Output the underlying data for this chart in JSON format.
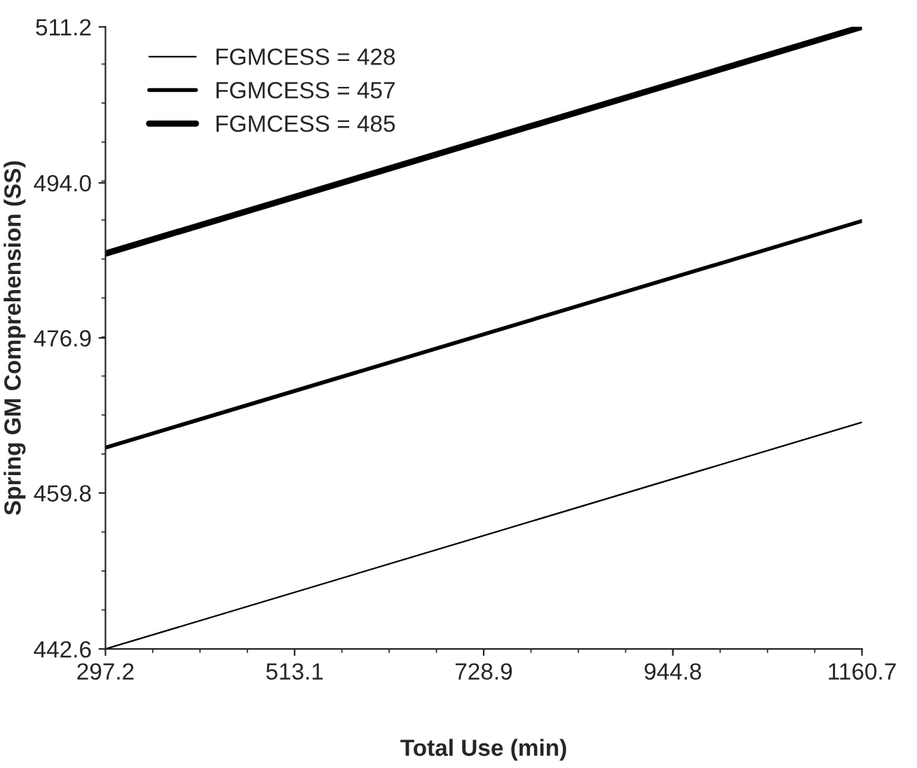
{
  "chart_data": {
    "type": "line",
    "xlabel": "Total Use (min)",
    "ylabel": "Spring GM Comprehension (SS)",
    "x": [
      297.2,
      1160.7
    ],
    "series": [
      {
        "name": "FGMCESS = 428",
        "color": "#000000",
        "values": [
          442.6,
          467.6
        ]
      },
      {
        "name": "FGMCESS = 457",
        "color": "#000000",
        "values": [
          464.8,
          489.8
        ]
      },
      {
        "name": "FGMCESS = 485",
        "color": "#000000",
        "values": [
          486.2,
          511.2
        ]
      }
    ],
    "xlim": [
      297.2,
      1160.7
    ],
    "ylim": [
      442.6,
      511.2
    ],
    "xticks": [
      297.2,
      513.1,
      728.9,
      944.8,
      1160.7
    ],
    "yticks": [
      442.6,
      459.8,
      476.9,
      {
        "value": 494.0,
        "label": "494.0"
      },
      511.2
    ],
    "grid": false,
    "legend": "top left",
    "marker": "none",
    "line_style": "solid"
  }
}
